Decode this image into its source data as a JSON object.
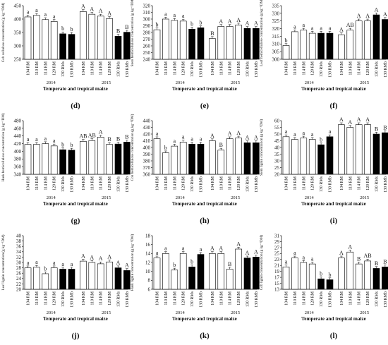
{
  "figure": {
    "xlabel": "Temperate and tropical maize",
    "years": [
      "2014",
      "2015"
    ],
    "categories": [
      "104 RM",
      "110 RM",
      "114 RM",
      "120 RM",
      "130 RMs",
      "130 RMb"
    ],
    "fill_open": "#ffffff",
    "fill_tropical": "#000000",
    "stroke": "#000000"
  },
  "chart_data": [
    {
      "type": "bar",
      "panel": "(d)",
      "ylabel": "Cob cellulose concentration (g kg⁻¹DM)",
      "ylim": [
        250,
        450
      ],
      "yticks": [
        250,
        300,
        350,
        400,
        450
      ],
      "categories": [
        "104 RM",
        "110 RM",
        "114 RM",
        "120 RM",
        "130 RMs",
        "130 RMb"
      ],
      "series": [
        {
          "name": "2014",
          "values": [
            408,
            414,
            398,
            391,
            345,
            343
          ],
          "letters": [
            "a",
            "a",
            "a",
            "a",
            "b",
            "b"
          ]
        },
        {
          "name": "2015",
          "values": [
            428,
            418,
            411,
            402,
            336,
            351
          ],
          "letters": [
            "A",
            "A",
            "A",
            "A",
            "B",
            "B"
          ]
        }
      ]
    },
    {
      "type": "bar",
      "panel": "(e)",
      "ylabel": "Stem hemicellulose concentration (g kg⁻¹DM)",
      "ylim": [
        240,
        320
      ],
      "yticks": [
        240,
        250,
        260,
        270,
        280,
        290,
        300,
        310,
        320
      ],
      "categories": [
        "104 RM",
        "110 RM",
        "114 RM",
        "120 RM",
        "130 RMs",
        "130 RMb"
      ],
      "series": [
        {
          "name": "2014",
          "values": [
            284,
            300,
            298,
            297,
            285,
            287
          ],
          "letters": [
            "b",
            "a",
            "a",
            "a",
            "b",
            "b"
          ]
        },
        {
          "name": "2015",
          "values": [
            271,
            289,
            289,
            291,
            286,
            286
          ],
          "letters": [
            "B",
            "A",
            "A",
            "A",
            "A",
            "A"
          ]
        }
      ]
    },
    {
      "type": "bar",
      "panel": "(f)",
      "ylabel": "Leaf hemicellulose concentration (g kg⁻¹DM)",
      "ylim": [
        300,
        335
      ],
      "yticks": [
        300,
        305,
        310,
        315,
        320,
        325,
        330,
        335
      ],
      "categories": [
        "104 RM",
        "110 RM",
        "114 RM",
        "120 RM",
        "130 RMs",
        "130 RMb"
      ],
      "series": [
        {
          "name": "2014",
          "values": [
            309,
            318,
            319,
            317,
            317,
            317
          ],
          "letters": [
            "b",
            "a",
            "a",
            "a",
            "a",
            "a"
          ]
        },
        {
          "name": "2015",
          "values": [
            316,
            319,
            325,
            325,
            329,
            326
          ],
          "letters": [
            "A",
            "AB",
            "A",
            "A",
            "A",
            "A"
          ]
        }
      ]
    },
    {
      "type": "bar",
      "panel": "(g)",
      "ylabel": "Husk hemicellulose concentration (g kg⁻¹DM)",
      "ylim": [
        340,
        480
      ],
      "yticks": [
        340,
        360,
        380,
        400,
        420,
        440,
        460,
        480
      ],
      "categories": [
        "104 RM",
        "110 RM",
        "114 RM",
        "120 RM",
        "130 RMs",
        "130 RMb"
      ],
      "series": [
        {
          "name": "2014",
          "values": [
            418,
            418,
            420,
            414,
            404,
            403
          ],
          "letters": [
            "a",
            "a",
            "a",
            "a",
            "b",
            "b"
          ]
        },
        {
          "name": "2015",
          "values": [
            426,
            428,
            437,
            418,
            419,
            424
          ],
          "letters": [
            "AB",
            "AB",
            "A",
            "B",
            "B",
            "B"
          ]
        }
      ]
    },
    {
      "type": "bar",
      "panel": "(h)",
      "ylabel": "Cob hemicellulose concentration (g kg⁻¹DM)",
      "ylim": [
        360,
        440
      ],
      "yticks": [
        360,
        370,
        380,
        390,
        400,
        410,
        420,
        430,
        440
      ],
      "categories": [
        "104 RM",
        "110 RM",
        "114 RM",
        "120 RM",
        "130 RMs",
        "130 RMb"
      ],
      "series": [
        {
          "name": "2014",
          "values": [
            413,
            392,
            402,
            408,
            405,
            405
          ],
          "letters": [
            "a",
            "b",
            "a",
            "a",
            "a",
            "a"
          ]
        },
        {
          "name": "2015",
          "values": [
            410,
            396,
            413,
            414,
            407,
            407
          ],
          "letters": [
            "A",
            "B",
            "A",
            "A",
            "A",
            "A"
          ]
        }
      ]
    },
    {
      "type": "bar",
      "panel": "(i)",
      "ylabel": "Stem lignin concentration (g kg⁻¹DM)",
      "ylim": [
        20,
        60
      ],
      "yticks": [
        20,
        25,
        30,
        35,
        40,
        45,
        50,
        55,
        60
      ],
      "categories": [
        "104 RM",
        "110 RM",
        "114 RM",
        "120 RM",
        "130 RMs",
        "130 RMb"
      ],
      "series": [
        {
          "name": "2014",
          "values": [
            48,
            46,
            47,
            46,
            42,
            48
          ],
          "letters": [
            "a",
            "a",
            "a",
            "a",
            "b",
            "a"
          ]
        },
        {
          "name": "2015",
          "values": [
            57,
            55,
            57,
            57,
            50,
            51
          ],
          "letters": [
            "A",
            "A",
            "A",
            "A",
            "B",
            "B"
          ]
        }
      ]
    },
    {
      "type": "bar",
      "panel": "(j)",
      "ylabel": "Leaf lignin concentration (g kg⁻¹DM)",
      "ylim": [
        20,
        40
      ],
      "yticks": [
        20,
        22,
        24,
        26,
        28,
        30,
        32,
        34,
        36,
        38,
        40
      ],
      "categories": [
        "104 RM",
        "110 RM",
        "114 RM",
        "120 RM",
        "130 RMs",
        "130 RMb"
      ],
      "series": [
        {
          "name": "2014",
          "values": [
            28,
            28.2,
            25.8,
            28,
            27.5,
            27.5
          ],
          "letters": [
            "a",
            "a",
            "b",
            "a",
            "a",
            "a"
          ]
        },
        {
          "name": "2015",
          "values": [
            30.5,
            30,
            29.5,
            30.2,
            28,
            27
          ],
          "letters": [
            "A",
            "A",
            "A",
            "A",
            "A",
            "A"
          ]
        }
      ]
    },
    {
      "type": "bar",
      "panel": "(k)",
      "ylabel": "Husk lignin concentration (g kg⁻¹DM)",
      "ylim": [
        6,
        18
      ],
      "yticks": [
        6,
        8,
        10,
        12,
        14,
        16,
        18
      ],
      "categories": [
        "104 RM",
        "110 RM",
        "114 RM",
        "120 RM",
        "130 RMs",
        "130 RMb"
      ],
      "series": [
        {
          "name": "2014",
          "values": [
            13,
            14,
            10.3,
            14,
            11,
            13.8
          ],
          "letters": [
            "a",
            "a",
            "b",
            "a",
            "b",
            "a"
          ]
        },
        {
          "name": "2015",
          "values": [
            14,
            14,
            10.5,
            15,
            13,
            13.2
          ],
          "letters": [
            "A",
            "A",
            "B",
            "A",
            "A",
            "A"
          ]
        }
      ]
    },
    {
      "type": "bar",
      "panel": "(l)",
      "ylabel": "Cob lignin concentration (g kg⁻¹DM)",
      "ylim": [
        13,
        31
      ],
      "yticks": [
        13,
        15,
        17,
        19,
        21,
        23,
        25,
        27,
        29,
        31
      ],
      "categories": [
        "104 RM",
        "110 RM",
        "114 RM",
        "120 RM",
        "130 RMs",
        "130 RMb"
      ],
      "series": [
        {
          "name": "2014",
          "values": [
            20.5,
            23.5,
            22,
            21.5,
            16.5,
            16.2
          ],
          "letters": [
            "a",
            "a",
            "a",
            "a",
            "b",
            "b"
          ]
        },
        {
          "name": "2015",
          "values": [
            23.5,
            25.5,
            21.5,
            22.5,
            20,
            20.5
          ],
          "letters": [
            "A",
            "A",
            "B",
            "AB",
            "B",
            "B"
          ]
        }
      ]
    }
  ]
}
